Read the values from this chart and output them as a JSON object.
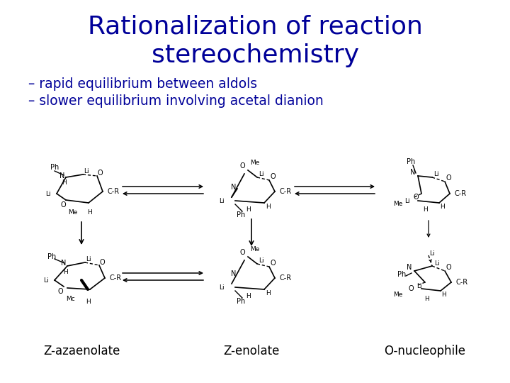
{
  "title_line1": "Rationalization of reaction",
  "title_line2": "stereochemistry",
  "title_color": "#000099",
  "title_fontsize": 26,
  "subtitle_line1": "– rapid equilibrium between aldols",
  "subtitle_line2": "– slower equilibrium involving acetal dianion",
  "subtitle_color": "#000099",
  "subtitle_fontsize": 13.5,
  "label1": "Z-azaenolate",
  "label2": "Z-enolate",
  "label3": "O-nucleophile",
  "label_fontsize": 12,
  "label_color": "#000000",
  "bg_color": "#ffffff",
  "fig_width": 7.2,
  "fig_height": 5.4,
  "dpi": 100
}
